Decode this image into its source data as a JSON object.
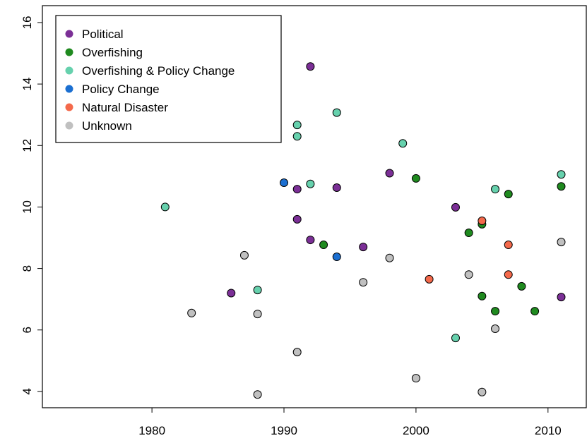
{
  "chart_data": {
    "type": "scatter",
    "xlim": [
      1971.7,
      2012.9
    ],
    "ylim": [
      3.47,
      16.55
    ],
    "xticks": [
      1980,
      1990,
      2000,
      2010
    ],
    "yticks": [
      4,
      6,
      8,
      10,
      12,
      14,
      16
    ],
    "legend": "topleft",
    "series": [
      {
        "name": "Political",
        "color": "#7b2f96",
        "x": [
          1991,
          1991,
          1992,
          1992,
          1994,
          1996,
          1998,
          2003,
          1986,
          2011
        ],
        "values": [
          10.58,
          9.6,
          14.57,
          8.93,
          10.63,
          8.7,
          11.1,
          9.99,
          7.2,
          7.07
        ]
      },
      {
        "name": "Overfishing",
        "color": "#1f8a1f",
        "x": [
          1993,
          2000,
          2004,
          2005,
          2007,
          2011,
          2005,
          2006,
          2008,
          2009
        ],
        "values": [
          8.77,
          10.93,
          9.16,
          9.44,
          10.42,
          10.67,
          7.1,
          6.61,
          7.42,
          6.61
        ]
      },
      {
        "name": "Overfishing & Policy Change",
        "color": "#66d1ad",
        "x": [
          1981,
          1991,
          1991,
          1992,
          1994,
          1999,
          1988,
          2003,
          2006,
          2011
        ],
        "values": [
          10.0,
          12.67,
          12.3,
          10.75,
          13.07,
          12.07,
          7.3,
          5.74,
          10.58,
          11.06
        ]
      },
      {
        "name": "Policy Change",
        "color": "#1b6fd1",
        "x": [
          1990,
          1994
        ],
        "values": [
          10.79,
          8.38
        ]
      },
      {
        "name": "Natural Disaster",
        "color": "#f4694b",
        "x": [
          2005,
          2001,
          2007,
          2007
        ],
        "values": [
          9.55,
          7.65,
          8.77,
          7.8
        ]
      },
      {
        "name": "Unknown",
        "color": "#c0c0c0",
        "x": [
          1983,
          1987,
          1988,
          1988,
          1991,
          1996,
          1998,
          2000,
          2004,
          2006,
          2005,
          2011
        ],
        "values": [
          6.55,
          8.43,
          6.52,
          3.9,
          5.28,
          7.55,
          8.34,
          4.43,
          7.8,
          6.04,
          3.98,
          8.86
        ]
      }
    ]
  }
}
